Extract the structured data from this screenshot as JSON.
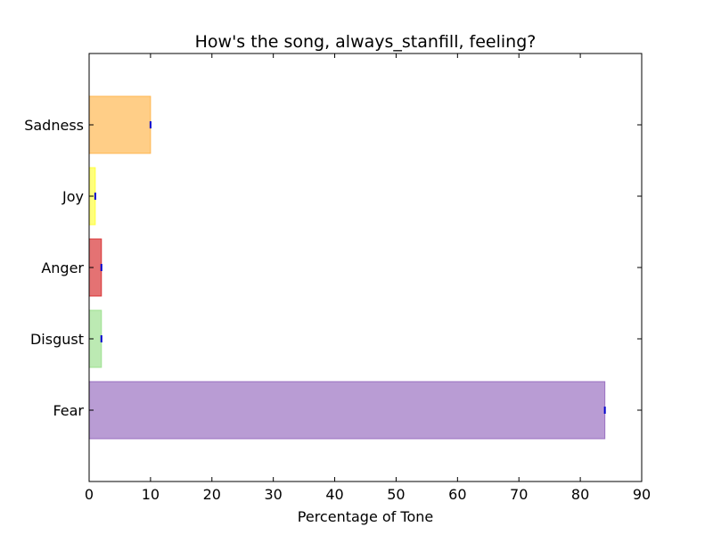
{
  "chart_data": {
    "type": "bar",
    "orientation": "horizontal",
    "title": "How's the song, always_stanfill, feeling?",
    "xlabel": "Percentage of Tone",
    "ylabel": "",
    "xlim": [
      0,
      90
    ],
    "xticks": [
      0,
      10,
      20,
      30,
      40,
      50,
      60,
      70,
      80,
      90
    ],
    "grid": false,
    "categories": [
      "Fear",
      "Disgust",
      "Anger",
      "Joy",
      "Sadness"
    ],
    "values": [
      84,
      2,
      2,
      1,
      10
    ],
    "colors": [
      "#9467bd",
      "#98df8a",
      "#d62728",
      "#ffff33",
      "#ffb347"
    ]
  }
}
